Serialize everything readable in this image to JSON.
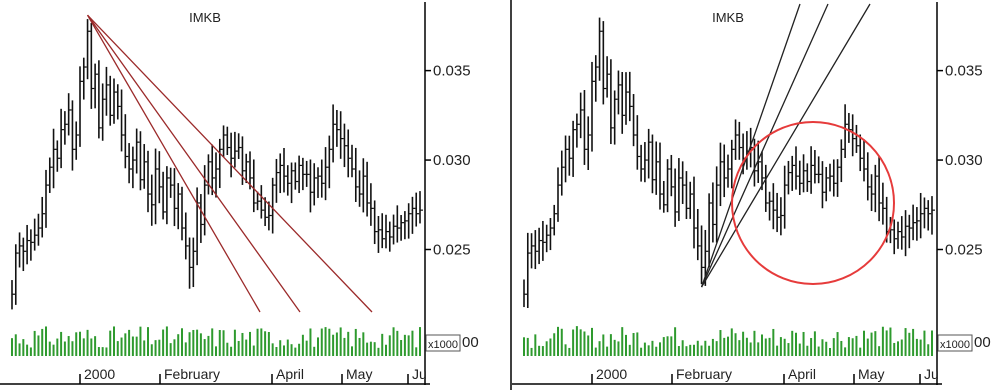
{
  "chart_data": [
    {
      "type": "ohlc",
      "title": "IMKB",
      "x_labels": [
        "2000",
        "February",
        "April",
        "May",
        "Ju"
      ],
      "y_ticks": [
        "0.035",
        "0.030",
        "0.025"
      ],
      "ylim": [
        0.0205,
        0.0385
      ],
      "volume_label": "x1000",
      "volume_tick": "00",
      "series": {
        "close": [
          0.0225,
          0.0248,
          0.0252,
          0.0249,
          0.0255,
          0.0254,
          0.0258,
          0.0262,
          0.027,
          0.0286,
          0.0296,
          0.0306,
          0.0301,
          0.0317,
          0.032,
          0.0328,
          0.0306,
          0.0314,
          0.0344,
          0.0352,
          0.0372,
          0.034,
          0.0348,
          0.0318,
          0.0334,
          0.0342,
          0.0325,
          0.0338,
          0.033,
          0.0314,
          0.0302,
          0.0295,
          0.03,
          0.031,
          0.0289,
          0.0299,
          0.0281,
          0.0275,
          0.0295,
          0.0285,
          0.0271,
          0.029,
          0.0286,
          0.0273,
          0.0281,
          0.0262,
          0.0252,
          0.024,
          0.0249,
          0.0276,
          0.0264,
          0.0286,
          0.0299,
          0.029,
          0.0295,
          0.0306,
          0.0314,
          0.0307,
          0.0301,
          0.0305,
          0.0307,
          0.0294,
          0.0299,
          0.029,
          0.0276,
          0.0277,
          0.0272,
          0.0268,
          0.0269,
          0.0286,
          0.0293,
          0.0297,
          0.0291,
          0.0287,
          0.0294,
          0.0288,
          0.0297,
          0.0292,
          0.0292,
          0.0282,
          0.029,
          0.0291,
          0.0287,
          0.0296,
          0.0306,
          0.032,
          0.0317,
          0.0312,
          0.0308,
          0.0301,
          0.0295,
          0.0285,
          0.0281,
          0.0291,
          0.0276,
          0.0273,
          0.026,
          0.0261,
          0.0256,
          0.026,
          0.0257,
          0.0263,
          0.0262,
          0.0265,
          0.0266,
          0.027,
          0.0273,
          0.027,
          0.0272
        ]
      },
      "annotations": [
        "three descending fan trendlines from the January peak"
      ]
    },
    {
      "type": "ohlc",
      "title": "IMKB",
      "x_labels": [
        "2000",
        "February",
        "April",
        "May",
        "Ju"
      ],
      "y_ticks": [
        "0.035",
        "0.030",
        "0.025"
      ],
      "ylim": [
        0.0205,
        0.0385
      ],
      "volume_label": "x1000",
      "volume_tick": "00",
      "series": {
        "close": [
          0.0225,
          0.0248,
          0.0252,
          0.0249,
          0.0255,
          0.0254,
          0.0258,
          0.0262,
          0.027,
          0.0286,
          0.0296,
          0.0306,
          0.0301,
          0.0317,
          0.032,
          0.0328,
          0.0306,
          0.0314,
          0.0344,
          0.0352,
          0.0372,
          0.034,
          0.0348,
          0.0318,
          0.0334,
          0.0342,
          0.0325,
          0.0338,
          0.033,
          0.0314,
          0.0302,
          0.0295,
          0.03,
          0.031,
          0.0289,
          0.0299,
          0.0281,
          0.0275,
          0.0295,
          0.0285,
          0.0271,
          0.029,
          0.0286,
          0.0273,
          0.0281,
          0.0262,
          0.0252,
          0.024,
          0.0249,
          0.0276,
          0.0264,
          0.0286,
          0.0299,
          0.029,
          0.0295,
          0.0306,
          0.0314,
          0.0307,
          0.0301,
          0.0305,
          0.0307,
          0.0294,
          0.0299,
          0.029,
          0.0276,
          0.0277,
          0.0272,
          0.0268,
          0.0269,
          0.0286,
          0.0293,
          0.0297,
          0.0291,
          0.0287,
          0.0294,
          0.0288,
          0.0297,
          0.0292,
          0.0292,
          0.0282,
          0.029,
          0.0291,
          0.0287,
          0.0296,
          0.0306,
          0.032,
          0.0317,
          0.0312,
          0.0308,
          0.0301,
          0.0295,
          0.0285,
          0.0281,
          0.0291,
          0.0276,
          0.0273,
          0.026,
          0.0261,
          0.0256,
          0.026,
          0.0257,
          0.0263,
          0.0262,
          0.0265,
          0.0266,
          0.027,
          0.0273,
          0.027,
          0.0272
        ]
      },
      "annotations": [
        "three ascending fan trendlines from the February low",
        "red circle highlighting the April–May consolidation"
      ]
    }
  ]
}
